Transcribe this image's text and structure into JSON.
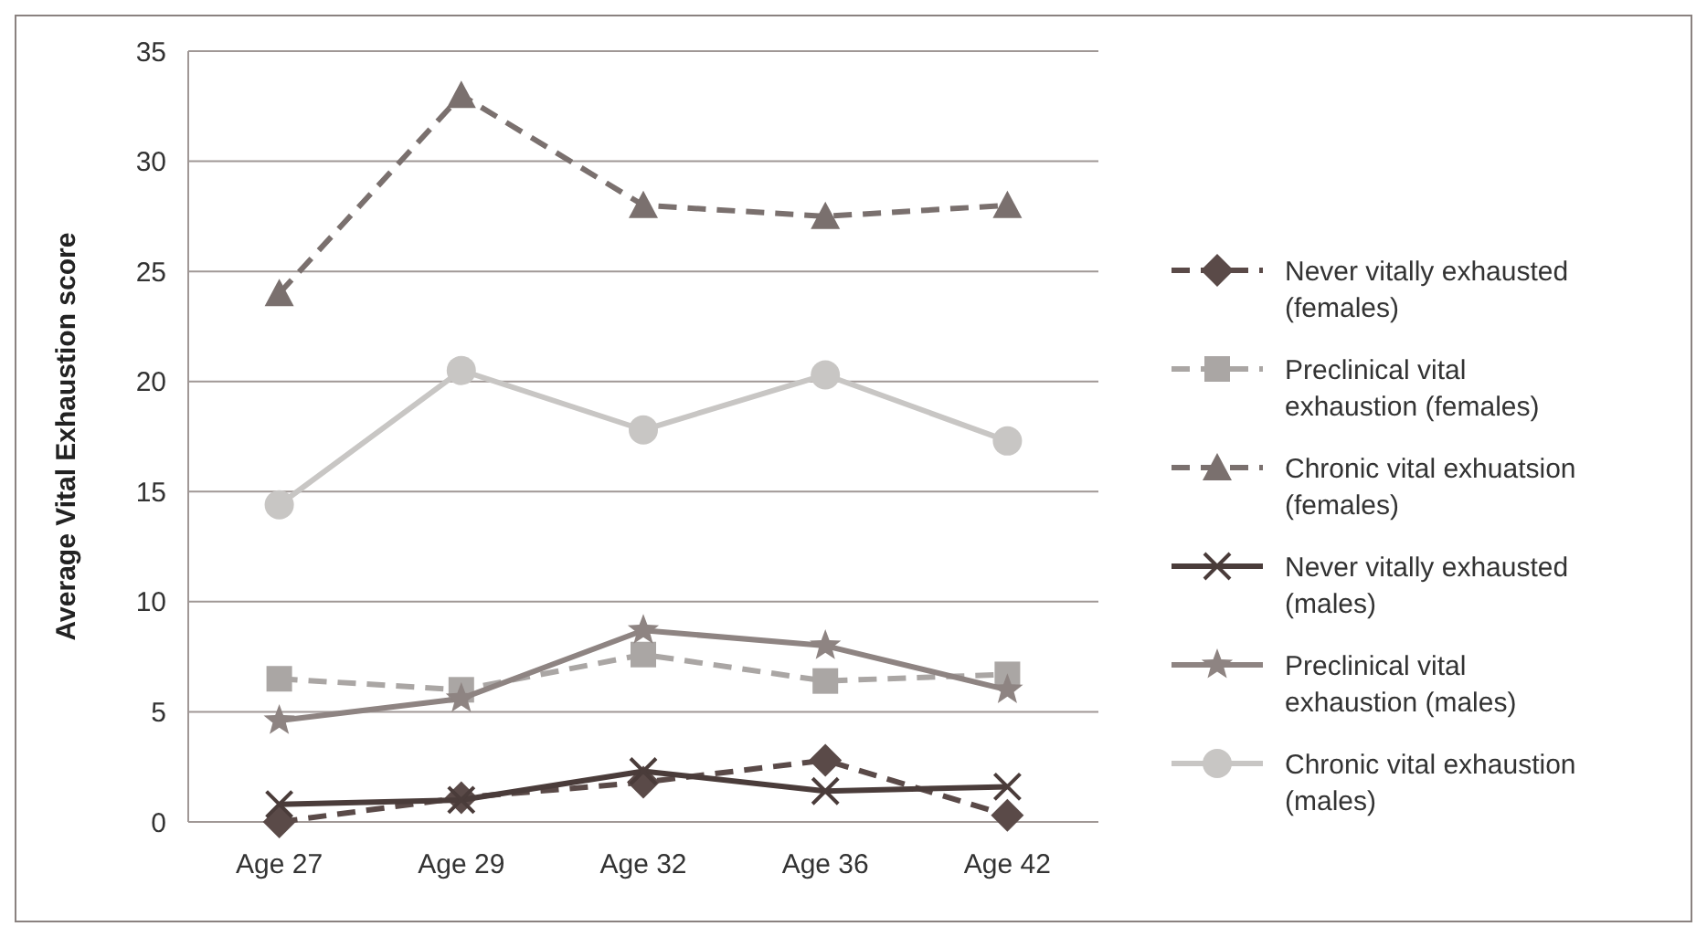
{
  "chart_data": {
    "type": "line",
    "ylabel": "Average Vital Exhaustion score",
    "categories": [
      "Age 27",
      "Age 29",
      "Age 32",
      "Age 36",
      "Age 42"
    ],
    "ylim": [
      0,
      35
    ],
    "yticks": [
      0,
      5,
      10,
      15,
      20,
      25,
      30,
      35
    ],
    "grid": "y",
    "legend": "right",
    "series": [
      {
        "name": "Never vitally exhausted (females)",
        "color": "#5a4a48",
        "marker": "diamond",
        "line_style": "dashed",
        "values": [
          0,
          1.1,
          1.8,
          2.8,
          0.3
        ]
      },
      {
        "name": "Preclinical vital exhaustion (females)",
        "color": "#aaa6a4",
        "marker": "square",
        "line_style": "dashed",
        "values": [
          6.5,
          6.0,
          7.6,
          6.4,
          6.7
        ]
      },
      {
        "name": "Chronic vital exhuatsion (females)",
        "color": "#7a706e",
        "marker": "triangle",
        "line_style": "dashed",
        "values": [
          24,
          33,
          28,
          27.5,
          28
        ]
      },
      {
        "name": "Never vitally exhausted (males)",
        "color": "#4a3c3a",
        "marker": "cross",
        "line_style": "solid",
        "values": [
          0.8,
          1.0,
          2.3,
          1.4,
          1.6
        ]
      },
      {
        "name": "Preclinical vital exhaustion (males)",
        "color": "#8e8482",
        "marker": "star",
        "line_style": "solid",
        "values": [
          4.6,
          5.6,
          8.7,
          8.0,
          6.0
        ]
      },
      {
        "name": "Chronic vital exhaustion (males)",
        "color": "#c8c6c4",
        "marker": "circle",
        "line_style": "solid",
        "values": [
          14.4,
          20.5,
          17.8,
          20.3,
          17.3
        ]
      }
    ]
  }
}
